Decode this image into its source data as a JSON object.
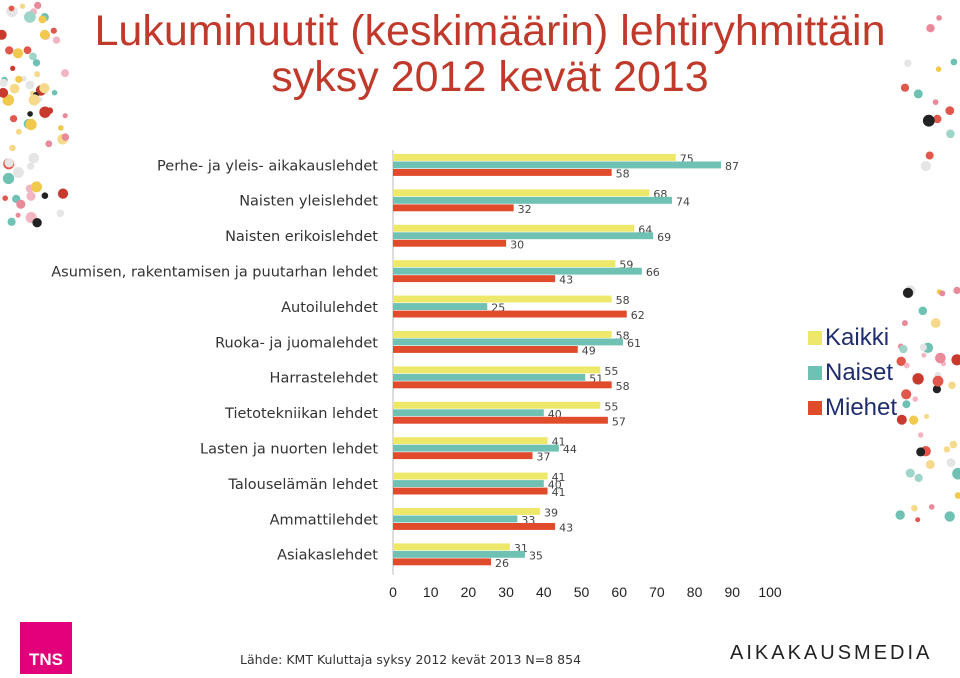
{
  "title_line1": "Lukuminuutit (keskimäärin) lehtiryhmittäin",
  "title_line2": "syksy 2012 kevät 2013",
  "colors": {
    "Kaikki": "#ede76a",
    "Naiset": "#6fc2b3",
    "Miehet": "#e04b2c",
    "title": "#c0392b"
  },
  "chart_data": {
    "type": "bar",
    "orientation": "horizontal",
    "categories": [
      "Perhe- ja yleis- aikakauslehdet",
      "Naisten yleislehdet",
      "Naisten erikoislehdet",
      "Asumisen, rakentamisen ja puutarhan lehdet",
      "Autoilulehdet",
      "Ruoka- ja juomalehdet",
      "Harrastelehdet",
      "Tietotekniikan lehdet",
      "Lasten ja nuorten lehdet",
      "Talouselämän lehdet",
      "Ammattilehdet",
      "Asiakaslehdet"
    ],
    "series": [
      {
        "name": "Kaikki",
        "values": [
          75,
          68,
          64,
          59,
          58,
          58,
          55,
          55,
          41,
          41,
          39,
          31
        ]
      },
      {
        "name": "Naiset",
        "values": [
          87,
          74,
          69,
          66,
          25,
          61,
          51,
          40,
          44,
          40,
          33,
          35
        ]
      },
      {
        "name": "Miehet",
        "values": [
          58,
          32,
          30,
          43,
          62,
          49,
          58,
          57,
          37,
          41,
          43,
          26
        ]
      }
    ],
    "xlim": [
      0,
      100
    ],
    "xticks": [
      "0",
      "10",
      "20",
      "30",
      "40",
      "50",
      "60",
      "70",
      "80",
      "90",
      "100"
    ],
    "legend_position": "right",
    "grid": false
  },
  "source": "Lähde: KMT Kuluttaja syksy 2012 kevät 2013 N=8 854",
  "logo_left": "TNS",
  "logo_right": "AIKAKAUSMEDIA"
}
